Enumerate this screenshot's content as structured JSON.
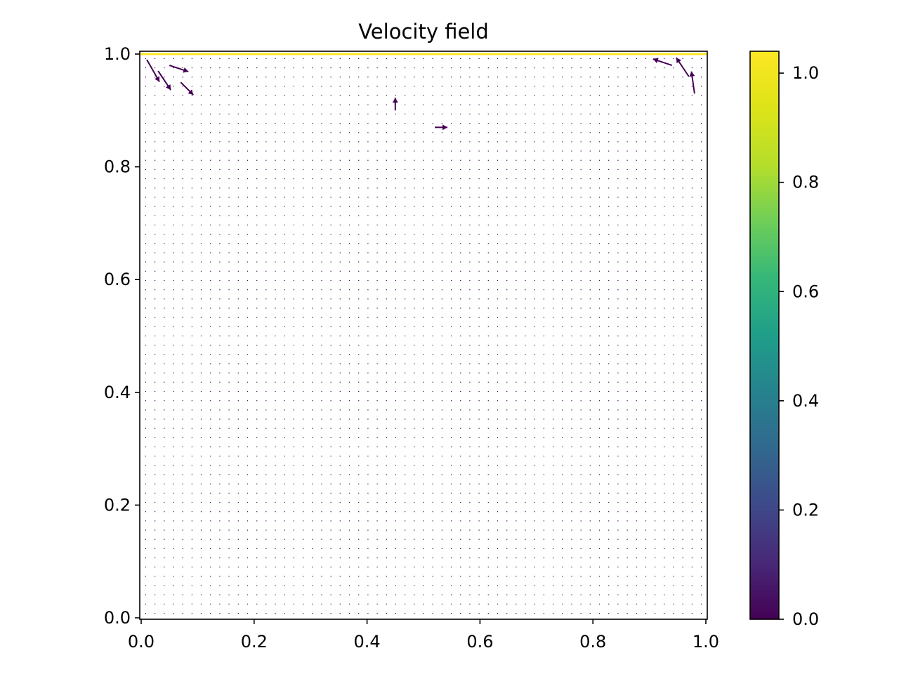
{
  "chart_data": {
    "type": "quiver",
    "title": "Velocity field",
    "xlabel": "",
    "ylabel": "",
    "xlim": [
      0.0,
      1.0
    ],
    "ylim": [
      0.0,
      1.0
    ],
    "xticks": [
      "0.0",
      "0.2",
      "0.4",
      "0.6",
      "0.8",
      "1.0"
    ],
    "yticks": [
      "0.0",
      "0.2",
      "0.4",
      "0.6",
      "0.8",
      "1.0"
    ],
    "grid": false,
    "grid_points_per_axis": 61,
    "colormap": "viridis",
    "colorbar": {
      "range": [
        0.0,
        1.04
      ],
      "ticks": [
        "0.0",
        "0.2",
        "0.4",
        "0.6",
        "0.8",
        "1.0"
      ]
    },
    "lid_velocity": 1.0,
    "notable_vectors": [
      {
        "x": 0.01,
        "y": 0.99,
        "u": 0.02,
        "v": -0.035,
        "magnitude": 0.04
      },
      {
        "x": 0.03,
        "y": 0.97,
        "u": 0.02,
        "v": -0.03,
        "magnitude": 0.036
      },
      {
        "x": 0.05,
        "y": 0.98,
        "u": 0.03,
        "v": -0.01,
        "magnitude": 0.032
      },
      {
        "x": 0.07,
        "y": 0.95,
        "u": 0.02,
        "v": -0.02,
        "magnitude": 0.028
      },
      {
        "x": 0.94,
        "y": 0.98,
        "u": -0.03,
        "v": 0.01,
        "magnitude": 0.032
      },
      {
        "x": 0.97,
        "y": 0.96,
        "u": -0.02,
        "v": 0.03,
        "magnitude": 0.036
      },
      {
        "x": 0.98,
        "y": 0.93,
        "u": -0.005,
        "v": 0.035,
        "magnitude": 0.036
      },
      {
        "x": 0.45,
        "y": 0.9,
        "u": 0.0,
        "v": 0.02,
        "magnitude": 0.02
      },
      {
        "x": 0.52,
        "y": 0.87,
        "u": 0.02,
        "v": 0.0,
        "magnitude": 0.02
      }
    ],
    "colors": {
      "low": "#440154",
      "high": "#fde725",
      "axes": "#000000"
    }
  }
}
